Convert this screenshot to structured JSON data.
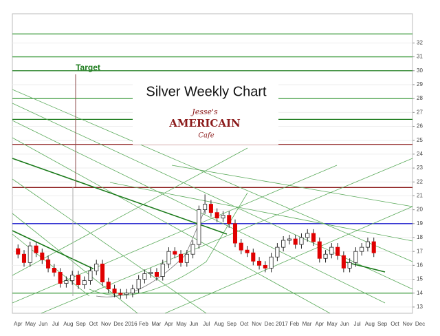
{
  "chart_data": {
    "type": "candlestick",
    "title": "Silver Weekly Chart",
    "logo": {
      "line1": "Jesse's",
      "line2": "AMERICAIN",
      "line3": "Cafe"
    },
    "annotation": "Target",
    "categories": [
      "Apr",
      "May",
      "Jun",
      "Jul",
      "Aug",
      "Sep",
      "Oct",
      "Nov",
      "Dec",
      "2016",
      "Feb",
      "Mar",
      "Apr",
      "May",
      "Jun",
      "Jul",
      "Aug",
      "Sep",
      "Oct",
      "Nov",
      "Dec",
      "2017",
      "Feb",
      "Mar",
      "Apr",
      "May",
      "Jun",
      "Jul",
      "Aug",
      "Sep",
      "Oct",
      "Nov",
      "Dec"
    ],
    "xlim": [
      -0.45,
      31.4
    ],
    "ylim": [
      12.55,
      34.1
    ],
    "yticks": [
      13,
      14,
      15,
      16,
      17,
      18,
      19,
      20,
      21,
      22,
      23,
      24,
      25,
      26,
      27,
      28,
      29,
      30,
      31,
      32
    ],
    "grid": true,
    "up_color": "#ffffff",
    "down_color": "#e00000",
    "levels": [
      {
        "value": 32.65,
        "color": "#3a9a3a"
      },
      {
        "value": 31.0,
        "color": "#3a9a3a"
      },
      {
        "value": 30.0,
        "color": "#1a7a1a"
      },
      {
        "value": 28.0,
        "color": "#3a9a3a"
      },
      {
        "value": 26.5,
        "color": "#1a7a1a"
      },
      {
        "value": 24.7,
        "color": "#8b1a1a"
      },
      {
        "value": 21.6,
        "color": "#8b1a1a"
      },
      {
        "value": 19.0,
        "color": "#1a1acc"
      },
      {
        "value": 14.0,
        "color": "#3a9a3a"
      }
    ],
    "x": [
      0,
      0.48,
      0.96,
      1.44,
      1.92,
      2.4,
      2.88,
      3.36,
      3.84,
      4.32,
      4.8,
      5.28,
      5.76,
      6.24,
      6.72,
      7.2,
      7.68,
      8.16,
      8.64,
      9.12,
      9.6,
      10.08,
      10.56,
      11.04,
      11.52,
      12,
      12.48,
      12.96,
      13.44,
      13.92,
      14.4,
      14.88,
      15.36,
      15.84,
      16.32,
      16.8,
      17.28,
      17.76,
      18.24,
      18.72,
      19.2,
      19.68,
      20.16,
      20.64,
      21.12,
      21.6,
      22.08,
      22.56,
      23.04,
      23.52,
      24,
      24.48,
      24.96,
      25.44,
      25.92,
      26.4,
      26.88,
      27.36,
      27.84,
      28.32
    ],
    "open": [
      17.2,
      16.8,
      16.2,
      17.4,
      16.9,
      16.4,
      15.8,
      15.5,
      14.7,
      14.9,
      15.3,
      14.6,
      14.9,
      15.6,
      16.1,
      14.8,
      14.3,
      14.0,
      13.9,
      14.0,
      14.3,
      15.0,
      15.4,
      15.5,
      15.2,
      16.1,
      17.0,
      16.8,
      16.2,
      16.8,
      17.5,
      20.0,
      20.4,
      19.8,
      19.4,
      19.6,
      19.0,
      17.6,
      17.1,
      16.9,
      16.3,
      16.0,
      15.8,
      16.6,
      17.3,
      17.8,
      17.9,
      17.5,
      18.0,
      18.3,
      17.7,
      16.5,
      16.8,
      17.3,
      16.7,
      15.8,
      16.2,
      17.0,
      17.3,
      17.7
    ],
    "high": [
      17.5,
      17.1,
      17.7,
      17.7,
      17.2,
      16.7,
      16.1,
      15.8,
      15.2,
      15.6,
      15.6,
      15.2,
      15.9,
      16.4,
      16.4,
      15.1,
      14.6,
      14.3,
      14.3,
      14.6,
      15.3,
      15.7,
      15.8,
      15.8,
      16.4,
      17.3,
      17.3,
      17.1,
      17.1,
      17.8,
      20.3,
      21.1,
      20.7,
      20.1,
      19.9,
      19.9,
      19.3,
      17.9,
      17.4,
      17.2,
      16.6,
      16.3,
      16.9,
      17.6,
      18.1,
      18.2,
      18.2,
      18.3,
      18.6,
      18.6,
      18.0,
      17.1,
      17.6,
      17.6,
      17.0,
      16.5,
      17.3,
      17.6,
      18.0,
      18.0
    ],
    "low": [
      16.5,
      15.9,
      15.9,
      16.6,
      16.1,
      15.5,
      15.2,
      14.4,
      14.4,
      14.6,
      14.3,
      14.3,
      14.6,
      15.3,
      14.5,
      14.0,
      13.7,
      13.6,
      13.6,
      13.7,
      14.0,
      14.7,
      15.1,
      14.9,
      14.9,
      15.8,
      16.5,
      15.9,
      15.9,
      16.5,
      17.2,
      19.7,
      19.5,
      19.1,
      19.1,
      18.7,
      17.3,
      16.8,
      16.6,
      16.0,
      15.7,
      15.5,
      15.5,
      16.3,
      17.0,
      17.5,
      17.2,
      17.2,
      17.7,
      17.4,
      16.2,
      16.2,
      16.5,
      16.4,
      15.5,
      15.5,
      15.9,
      16.7,
      17.0,
      16.6
    ],
    "close": [
      16.8,
      16.2,
      17.4,
      16.9,
      16.4,
      15.8,
      15.5,
      14.7,
      14.9,
      15.3,
      14.6,
      14.9,
      15.6,
      16.1,
      14.8,
      14.3,
      14.0,
      13.9,
      14.0,
      14.3,
      15.0,
      15.4,
      15.5,
      15.2,
      16.1,
      17.0,
      16.8,
      16.2,
      16.8,
      17.5,
      20.0,
      20.4,
      19.8,
      19.4,
      19.6,
      19.0,
      17.6,
      17.1,
      16.9,
      16.3,
      16.0,
      15.8,
      16.6,
      17.3,
      17.8,
      17.9,
      17.5,
      18.0,
      18.3,
      17.7,
      16.5,
      16.8,
      17.3,
      16.7,
      15.8,
      16.2,
      17.0,
      17.3,
      17.7,
      16.9
    ]
  }
}
